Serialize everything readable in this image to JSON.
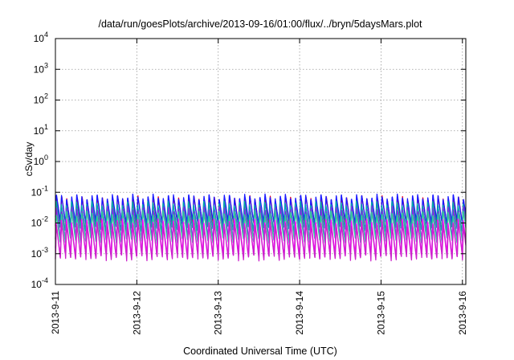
{
  "chart_data": {
    "type": "line",
    "title": "/data/run/goesPlots/archive/2013-09-16/01:00/flux/../bryn/5daysMars.plot",
    "xlabel": "Coordinated Universal Time (UTC)",
    "ylabel": "cSv/day",
    "yscale": "log",
    "ylim": [
      0.0001,
      10000
    ],
    "y_ticks": [
      {
        "value": 0.0001,
        "base": "10",
        "exp": "-4"
      },
      {
        "value": 0.001,
        "base": "10",
        "exp": "-3"
      },
      {
        "value": 0.01,
        "base": "10",
        "exp": "-2"
      },
      {
        "value": 0.1,
        "base": "10",
        "exp": "-1"
      },
      {
        "value": 1,
        "base": "10",
        "exp": "0"
      },
      {
        "value": 10,
        "base": "10",
        "exp": "1"
      },
      {
        "value": 100,
        "base": "10",
        "exp": "2"
      },
      {
        "value": 1000,
        "base": "10",
        "exp": "3"
      },
      {
        "value": 10000,
        "base": "10",
        "exp": "4"
      }
    ],
    "xlim": [
      "2013-09-11 00:00",
      "2013-09-16 01:00"
    ],
    "x_ticks": [
      "2013-9-11",
      "2013-9-12",
      "2013-9-13",
      "2013-9-14",
      "2013-9-15",
      "2013-9-16"
    ],
    "grid": true,
    "legend": "none",
    "pattern": "sawtooth, ~90 min period (Mars orbit dose)",
    "series": [
      {
        "color": "#e8002a",
        "peak": 0.065,
        "trough": 0.008
      },
      {
        "color": "#1a1aff",
        "peak": 0.075,
        "trough": 0.01
      },
      {
        "color": "#00aaaa",
        "peak": 0.045,
        "trough": 0.006
      },
      {
        "color": "#8a2be2",
        "peak": 0.03,
        "trough": 0.003
      },
      {
        "color": "#33cc99",
        "peak": 0.022,
        "trough": 0.0025
      },
      {
        "color": "#ff00ff",
        "peak": 0.012,
        "trough": 0.0009
      },
      {
        "color": "#cc22cc",
        "peak": 0.009,
        "trough": 0.0007
      }
    ]
  }
}
